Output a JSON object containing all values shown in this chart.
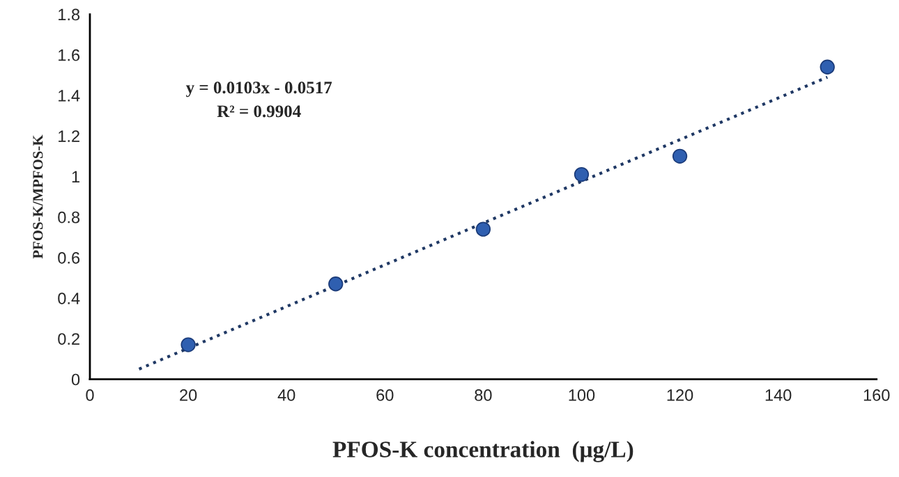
{
  "chart_data": {
    "type": "scatter",
    "xlabel": "PFOS-K concentration  (μg/L)",
    "ylabel": "PFOS-K/MPFOS-K",
    "annotations": [
      "y = 0.0103x - 0.0517",
      "R² = 0.9904"
    ],
    "series": [
      {
        "color": "#2f5fb0",
        "x": [
          20,
          50,
          80,
          100,
          120,
          150
        ],
        "values": [
          0.17,
          0.47,
          0.74,
          1.01,
          1.1,
          1.54
        ],
        "marker": "circle"
      },
      {
        "type": "line",
        "color": "#1f3864",
        "x": [
          10,
          150
        ],
        "values": [
          0.05,
          1.49
        ],
        "line_style": "dotted",
        "marker": "none"
      }
    ],
    "xlim": [
      0,
      160
    ],
    "xticks": [
      0,
      20,
      40,
      60,
      80,
      100,
      120,
      140,
      160
    ],
    "ylim": [
      0,
      1.8
    ],
    "yticks": [
      0,
      0.2,
      0.4,
      0.6,
      0.8,
      1,
      1.2,
      1.4,
      1.6,
      1.8
    ],
    "grid": false,
    "legend": false
  }
}
